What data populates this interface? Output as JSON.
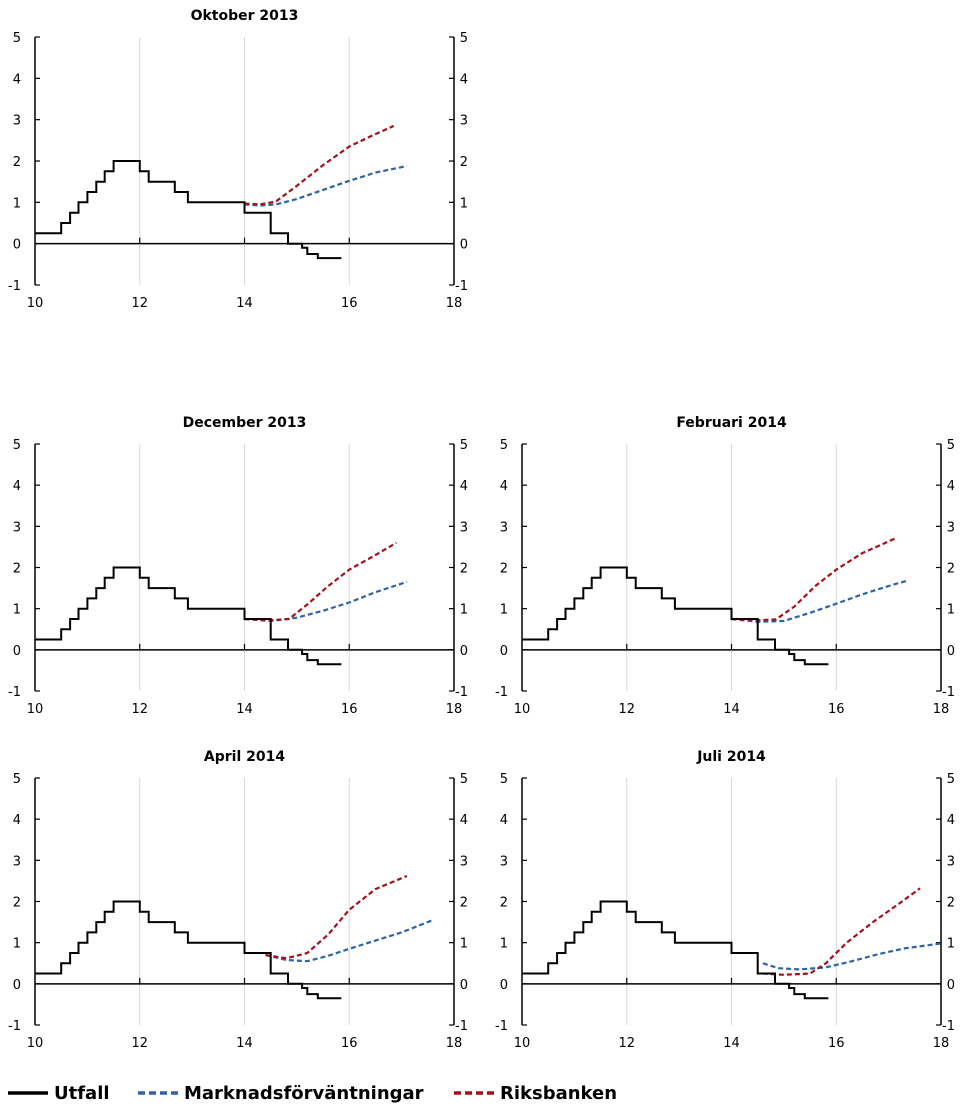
{
  "chart_data": [
    {
      "type": "line",
      "title": "Oktober 2013",
      "xlim": [
        10,
        18
      ],
      "ylim": [
        -1,
        5
      ],
      "xticks": [
        10,
        12,
        14,
        16,
        18
      ],
      "yticks": [
        -1,
        0,
        1,
        2,
        3,
        4,
        5
      ],
      "series": [
        {
          "key": "utfall",
          "name": "Utfall",
          "color": "#000000",
          "dash": false,
          "x": [
            10,
            10.5,
            10.5,
            10.67,
            10.67,
            10.83,
            10.83,
            11,
            11,
            11.17,
            11.17,
            11.33,
            11.33,
            11.5,
            11.5,
            11.75,
            11.75,
            12,
            12,
            12.17,
            12.17,
            12.67,
            12.67,
            12.92,
            12.92,
            14,
            14,
            14.5,
            14.5,
            14.83,
            14.83,
            15.1,
            15.1,
            15.2,
            15.2,
            15.4,
            15.4,
            15.6,
            15.6,
            15.85
          ],
          "y": [
            0.25,
            0.25,
            0.5,
            0.5,
            0.75,
            0.75,
            1.0,
            1.0,
            1.25,
            1.25,
            1.5,
            1.5,
            1.75,
            1.75,
            2.0,
            2.0,
            2.0,
            2.0,
            1.75,
            1.75,
            1.5,
            1.5,
            1.25,
            1.25,
            1.0,
            1.0,
            0.75,
            0.75,
            0.25,
            0.25,
            0.0,
            0.0,
            -0.1,
            -0.1,
            -0.25,
            -0.25,
            -0.35,
            -0.35,
            -0.35,
            -0.35
          ]
        },
        {
          "key": "market",
          "name": "Marknadsförväntningar",
          "color": "#2e64a6",
          "dash": true,
          "x": [
            14,
            14.3,
            14.6,
            15,
            15.5,
            16,
            16.5,
            17.1
          ],
          "y": [
            0.95,
            0.92,
            0.95,
            1.08,
            1.3,
            1.52,
            1.72,
            1.88
          ]
        },
        {
          "key": "riksbank",
          "name": "Riksbanken",
          "color": "#a3111c",
          "dash": true,
          "x": [
            14,
            14.3,
            14.6,
            15,
            15.5,
            16,
            16.5,
            16.85
          ],
          "y": [
            0.97,
            0.95,
            1.02,
            1.4,
            1.9,
            2.35,
            2.65,
            2.85
          ]
        }
      ]
    },
    {
      "type": "line",
      "title": "December 2013",
      "xlim": [
        10,
        18
      ],
      "ylim": [
        -1,
        5
      ],
      "xticks": [
        10,
        12,
        14,
        16,
        18
      ],
      "yticks": [
        -1,
        0,
        1,
        2,
        3,
        4,
        5
      ],
      "series": [
        {
          "key": "utfall",
          "name": "Utfall",
          "color": "#000000",
          "dash": false,
          "x": [
            10,
            10.5,
            10.5,
            10.67,
            10.67,
            10.83,
            10.83,
            11,
            11,
            11.17,
            11.17,
            11.33,
            11.33,
            11.5,
            11.5,
            11.75,
            11.75,
            12,
            12,
            12.17,
            12.17,
            12.67,
            12.67,
            12.92,
            12.92,
            14,
            14,
            14.5,
            14.5,
            14.83,
            14.83,
            15.1,
            15.1,
            15.2,
            15.2,
            15.4,
            15.4,
            15.6,
            15.6,
            15.85
          ],
          "y": [
            0.25,
            0.25,
            0.5,
            0.5,
            0.75,
            0.75,
            1.0,
            1.0,
            1.25,
            1.25,
            1.5,
            1.5,
            1.75,
            1.75,
            2.0,
            2.0,
            2.0,
            2.0,
            1.75,
            1.75,
            1.5,
            1.5,
            1.25,
            1.25,
            1.0,
            1.0,
            0.75,
            0.75,
            0.25,
            0.25,
            0.0,
            0.0,
            -0.1,
            -0.1,
            -0.25,
            -0.25,
            -0.35,
            -0.35,
            -0.35,
            -0.35
          ]
        },
        {
          "key": "market",
          "name": "Marknadsförväntningar",
          "color": "#2e64a6",
          "dash": true,
          "x": [
            14,
            14.5,
            15,
            15.5,
            16,
            16.5,
            17.1
          ],
          "y": [
            0.75,
            0.7,
            0.78,
            0.95,
            1.15,
            1.4,
            1.65
          ]
        },
        {
          "key": "riksbank",
          "name": "Riksbanken",
          "color": "#a3111c",
          "dash": true,
          "x": [
            14,
            14.5,
            14.85,
            15.2,
            15.6,
            16,
            16.5,
            16.9
          ],
          "y": [
            0.75,
            0.72,
            0.75,
            1.1,
            1.55,
            1.95,
            2.3,
            2.6
          ]
        }
      ]
    },
    {
      "type": "line",
      "title": "Februari 2014",
      "xlim": [
        10,
        18
      ],
      "ylim": [
        -1,
        5
      ],
      "xticks": [
        10,
        12,
        14,
        16,
        18
      ],
      "yticks": [
        -1,
        0,
        1,
        2,
        3,
        4,
        5
      ],
      "series": [
        {
          "key": "utfall",
          "name": "Utfall",
          "color": "#000000",
          "dash": false,
          "x": [
            10,
            10.5,
            10.5,
            10.67,
            10.67,
            10.83,
            10.83,
            11,
            11,
            11.17,
            11.17,
            11.33,
            11.33,
            11.5,
            11.5,
            11.75,
            11.75,
            12,
            12,
            12.17,
            12.17,
            12.67,
            12.67,
            12.92,
            12.92,
            14,
            14,
            14.5,
            14.5,
            14.83,
            14.83,
            15.1,
            15.1,
            15.2,
            15.2,
            15.4,
            15.4,
            15.6,
            15.6,
            15.85
          ],
          "y": [
            0.25,
            0.25,
            0.5,
            0.5,
            0.75,
            0.75,
            1.0,
            1.0,
            1.25,
            1.25,
            1.5,
            1.5,
            1.75,
            1.75,
            2.0,
            2.0,
            2.0,
            2.0,
            1.75,
            1.75,
            1.5,
            1.5,
            1.25,
            1.25,
            1.0,
            1.0,
            0.75,
            0.75,
            0.25,
            0.25,
            0.0,
            0.0,
            -0.1,
            -0.1,
            -0.25,
            -0.25,
            -0.35,
            -0.35,
            -0.35,
            -0.35
          ]
        },
        {
          "key": "market",
          "name": "Marknadsförväntningar",
          "color": "#2e64a6",
          "dash": true,
          "x": [
            14,
            14.5,
            15,
            15.5,
            16,
            16.5,
            17.0,
            17.35
          ],
          "y": [
            0.75,
            0.68,
            0.7,
            0.9,
            1.12,
            1.35,
            1.55,
            1.68
          ]
        },
        {
          "key": "riksbank",
          "name": "Riksbanken",
          "color": "#a3111c",
          "dash": true,
          "x": [
            14,
            14.5,
            14.85,
            15.2,
            15.6,
            16,
            16.5,
            17.15
          ],
          "y": [
            0.75,
            0.72,
            0.74,
            1.05,
            1.55,
            1.95,
            2.35,
            2.72
          ]
        }
      ]
    },
    {
      "type": "line",
      "title": "April 2014",
      "xlim": [
        10,
        18
      ],
      "ylim": [
        -1,
        5
      ],
      "xticks": [
        10,
        12,
        14,
        16,
        18
      ],
      "yticks": [
        -1,
        0,
        1,
        2,
        3,
        4,
        5
      ],
      "series": [
        {
          "key": "utfall",
          "name": "Utfall",
          "color": "#000000",
          "dash": false,
          "x": [
            10,
            10.5,
            10.5,
            10.67,
            10.67,
            10.83,
            10.83,
            11,
            11,
            11.17,
            11.17,
            11.33,
            11.33,
            11.5,
            11.5,
            11.75,
            11.75,
            12,
            12,
            12.17,
            12.17,
            12.67,
            12.67,
            12.92,
            12.92,
            14,
            14,
            14.5,
            14.5,
            14.83,
            14.83,
            15.1,
            15.1,
            15.2,
            15.2,
            15.4,
            15.4,
            15.6,
            15.6,
            15.85
          ],
          "y": [
            0.25,
            0.25,
            0.5,
            0.5,
            0.75,
            0.75,
            1.0,
            1.0,
            1.25,
            1.25,
            1.5,
            1.5,
            1.75,
            1.75,
            2.0,
            2.0,
            2.0,
            2.0,
            1.75,
            1.75,
            1.5,
            1.5,
            1.25,
            1.25,
            1.0,
            1.0,
            0.75,
            0.75,
            0.25,
            0.25,
            0.0,
            0.0,
            -0.1,
            -0.1,
            -0.25,
            -0.25,
            -0.35,
            -0.35,
            -0.35,
            -0.35
          ]
        },
        {
          "key": "market",
          "name": "Marknadsförväntningar",
          "color": "#2e64a6",
          "dash": true,
          "x": [
            14.4,
            14.8,
            15.2,
            15.6,
            16,
            16.5,
            17.0,
            17.6
          ],
          "y": [
            0.7,
            0.58,
            0.55,
            0.68,
            0.85,
            1.05,
            1.25,
            1.55
          ]
        },
        {
          "key": "riksbank",
          "name": "Riksbanken",
          "color": "#a3111c",
          "dash": true,
          "x": [
            14.4,
            14.8,
            15.2,
            15.6,
            16,
            16.5,
            17.1
          ],
          "y": [
            0.7,
            0.62,
            0.75,
            1.2,
            1.8,
            2.3,
            2.62
          ]
        }
      ]
    },
    {
      "type": "line",
      "title": "Juli 2014",
      "xlim": [
        10,
        18
      ],
      "ylim": [
        -1,
        5
      ],
      "xticks": [
        10,
        12,
        14,
        16,
        18
      ],
      "yticks": [
        -1,
        0,
        1,
        2,
        3,
        4,
        5
      ],
      "series": [
        {
          "key": "utfall",
          "name": "Utfall",
          "color": "#000000",
          "dash": false,
          "x": [
            10,
            10.5,
            10.5,
            10.67,
            10.67,
            10.83,
            10.83,
            11,
            11,
            11.17,
            11.17,
            11.33,
            11.33,
            11.5,
            11.5,
            11.75,
            11.75,
            12,
            12,
            12.17,
            12.17,
            12.67,
            12.67,
            12.92,
            12.92,
            14,
            14,
            14.5,
            14.5,
            14.83,
            14.83,
            15.1,
            15.1,
            15.2,
            15.2,
            15.4,
            15.4,
            15.6,
            15.6,
            15.85
          ],
          "y": [
            0.25,
            0.25,
            0.5,
            0.5,
            0.75,
            0.75,
            1.0,
            1.0,
            1.25,
            1.25,
            1.5,
            1.5,
            1.75,
            1.75,
            2.0,
            2.0,
            2.0,
            2.0,
            1.75,
            1.75,
            1.5,
            1.5,
            1.25,
            1.25,
            1.0,
            1.0,
            0.75,
            0.75,
            0.25,
            0.25,
            0.0,
            0.0,
            -0.1,
            -0.1,
            -0.25,
            -0.25,
            -0.35,
            -0.35,
            -0.35,
            -0.35
          ]
        },
        {
          "key": "market",
          "name": "Marknadsförväntningar",
          "color": "#2e64a6",
          "dash": true,
          "x": [
            14.6,
            14.9,
            15.3,
            15.8,
            16.3,
            16.8,
            17.3,
            18.0
          ],
          "y": [
            0.5,
            0.38,
            0.35,
            0.4,
            0.55,
            0.72,
            0.86,
            0.98
          ]
        },
        {
          "key": "riksbank",
          "name": "Riksbanken",
          "color": "#a3111c",
          "dash": true,
          "x": [
            14.6,
            15.0,
            15.5,
            15.8,
            16.2,
            16.7,
            17.2,
            17.6
          ],
          "y": [
            0.25,
            0.22,
            0.25,
            0.5,
            1.0,
            1.5,
            1.95,
            2.32
          ]
        }
      ]
    }
  ],
  "legend": [
    {
      "key": "utfall",
      "label": "Utfall",
      "color": "#000000",
      "dash": false
    },
    {
      "key": "market",
      "label": "Marknadsförväntningar",
      "color": "#2e64a6",
      "dash": true
    },
    {
      "key": "riksbank",
      "label": "Riksbanken",
      "color": "#a3111c",
      "dash": true
    }
  ]
}
